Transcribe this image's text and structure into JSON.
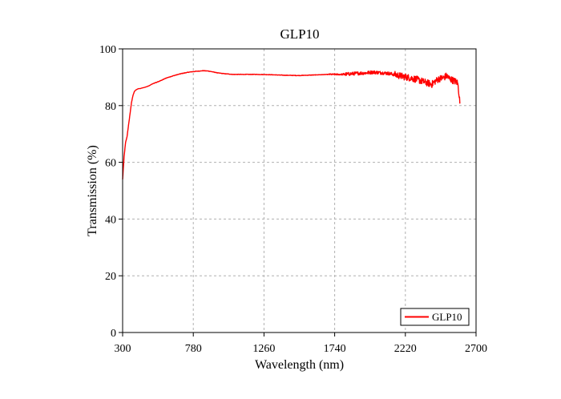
{
  "chart_data": {
    "type": "line",
    "title": "GLP10",
    "xlabel": "Wavelength (nm)",
    "ylabel": "Transmission (%)",
    "xlim": [
      300,
      2700
    ],
    "ylim": [
      0,
      100
    ],
    "xticks": [
      300,
      780,
      1260,
      1740,
      2220,
      2700
    ],
    "yticks": [
      0,
      20,
      40,
      60,
      80,
      100
    ],
    "grid": true,
    "legend_position": "bottom-right",
    "series": [
      {
        "name": "GLP10",
        "color": "#ff0000",
        "noisy_from_x": 1800,
        "x": [
          300,
          310,
          320,
          330,
          340,
          350,
          360,
          370,
          380,
          390,
          400,
          410,
          420,
          430,
          440,
          460,
          480,
          500,
          550,
          600,
          650,
          700,
          750,
          800,
          850,
          880,
          900,
          950,
          1000,
          1050,
          1100,
          1150,
          1200,
          1300,
          1400,
          1500,
          1600,
          1700,
          1800,
          1850,
          1900,
          1950,
          2000,
          2050,
          2100,
          2150,
          2200,
          2250,
          2300,
          2350,
          2400,
          2420,
          2450,
          2480,
          2500,
          2520,
          2540,
          2560,
          2575,
          2585,
          2590
        ],
        "y": [
          54,
          62,
          67,
          69,
          73,
          77,
          81,
          83.5,
          85,
          85.5,
          85.8,
          86,
          86,
          86.2,
          86.3,
          86.6,
          87,
          87.6,
          88.6,
          89.8,
          90.6,
          91.3,
          91.8,
          92.1,
          92.3,
          92.2,
          92,
          91.5,
          91.2,
          91,
          91,
          91,
          91,
          90.9,
          90.7,
          90.6,
          90.8,
          91,
          91,
          91.2,
          91.4,
          91.5,
          91.8,
          91.6,
          91.4,
          90.9,
          90.3,
          89.8,
          89.2,
          88.3,
          87.5,
          88.5,
          89.5,
          89.8,
          90.5,
          89.5,
          89,
          88.5,
          88,
          84,
          81
        ]
      }
    ]
  }
}
